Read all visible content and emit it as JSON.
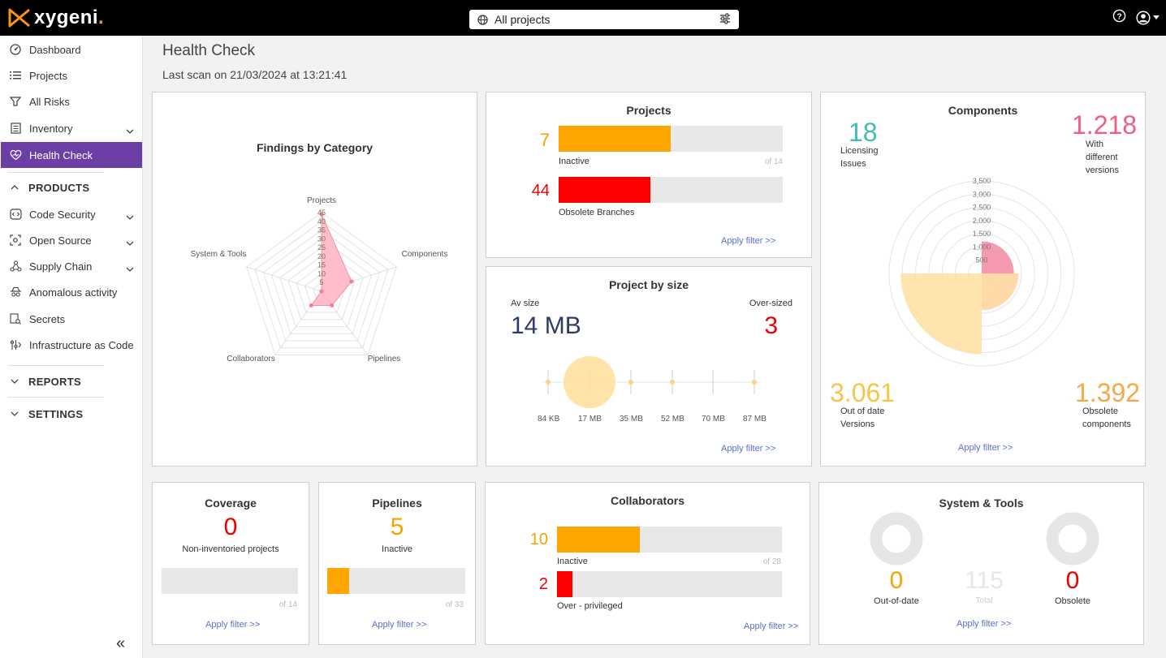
{
  "app": {
    "logo_text": "xygeni",
    "logo_dot": "."
  },
  "topbar": {
    "project_selector": "All projects"
  },
  "sidebar": {
    "items": [
      {
        "label": "Dashboard"
      },
      {
        "label": "Projects"
      },
      {
        "label": "All Risks"
      },
      {
        "label": "Inventory"
      },
      {
        "label": "Health Check"
      }
    ],
    "products_section": "PRODUCTS",
    "product_items": [
      {
        "label": "Code Security"
      },
      {
        "label": "Open Source"
      },
      {
        "label": "Supply Chain"
      },
      {
        "label": "Anomalous activity"
      },
      {
        "label": "Secrets"
      },
      {
        "label": "Infrastructure as Code"
      }
    ],
    "reports_section": "REPORTS",
    "settings_section": "SETTINGS",
    "collapse_glyph": "«"
  },
  "header": {
    "title": "Health Check",
    "subtitle": "Last scan on 21/03/2024 at 13:21:41"
  },
  "findings": {
    "title": "Findings by Category",
    "chart_data": {
      "type": "radar",
      "title": "Findings by Category",
      "axes": [
        "Projects",
        "Components",
        "Pipelines",
        "Collaborators",
        "System & Tools"
      ],
      "values": [
        44,
        18,
        10,
        10,
        0
      ],
      "ticks": [
        "5",
        "10",
        "15",
        "20",
        "25",
        "30",
        "35",
        "40",
        "45"
      ],
      "range": [
        0,
        45
      ]
    }
  },
  "projects_card": {
    "title": "Projects",
    "inactive_value": "7",
    "inactive_label": "Inactive",
    "inactive_fraction": 0.5,
    "of_total": "of 14",
    "obsolete_value": "44",
    "obsolete_label": "Obsolete Branches",
    "obsolete_fraction": 0.41,
    "apply": "Apply filter >>"
  },
  "size_card": {
    "title": "Project by size",
    "av_label": "Av size",
    "av_value": "14 MB",
    "over_label": "Over-sized",
    "over_value": "3",
    "ticks": [
      "84 KB",
      "17 MB",
      "35 MB",
      "52 MB",
      "70 MB",
      "87 MB"
    ],
    "apply": "Apply filter >>"
  },
  "components_card": {
    "title": "Components",
    "licensing_value": "18",
    "licensing_label_1": "Licensing",
    "licensing_label_2": "Issues",
    "versions_value": "1.218",
    "versions_label_1": "With",
    "versions_label_2": "different",
    "versions_label_3": "versions",
    "outdated_value": "3.061",
    "outdated_label_1": "Out of date",
    "outdated_label_2": "Versions",
    "obsolete_value": "1.392",
    "obsolete_label_1": "Obsolete",
    "obsolete_label_2": "components",
    "chart_data": {
      "type": "polar-area",
      "ticks": [
        "500",
        "1,000",
        "1,500",
        "2,000",
        "2,500",
        "3,000",
        "3,500"
      ],
      "range": [
        0,
        3500
      ],
      "segments": [
        {
          "label": "With different versions",
          "value": 1218,
          "color": "#f48fa8"
        },
        {
          "label": "Obsolete components",
          "value": 1392,
          "color": "#ffd59e"
        },
        {
          "label": "Out of date Versions",
          "value": 3061,
          "color": "#ffe1a6"
        },
        {
          "label": "Licensing Issues",
          "value": 18,
          "color": "#7fd3d0"
        }
      ]
    },
    "apply": "Apply filter >>"
  },
  "coverage_card": {
    "title": "Coverage",
    "value": "0",
    "label": "Non-inventoried projects",
    "of_total": "of 14",
    "fraction": 0,
    "apply": "Apply filter >>"
  },
  "pipelines_card": {
    "title": "Pipelines",
    "value": "5",
    "label": "Inactive",
    "of_total": "of 33",
    "fraction": 0.16,
    "apply": "Apply filter >>"
  },
  "collaborators_card": {
    "title": "Collaborators",
    "inactive_value": "10",
    "inactive_label": "Inactive",
    "inactive_fraction": 0.37,
    "of_total": "of 28",
    "priv_value": "2",
    "priv_label": "Over - privileged",
    "priv_fraction": 0.07,
    "apply": "Apply filter >>"
  },
  "system_card": {
    "title": "System & Tools",
    "outdated_value": "0",
    "outdated_label": "Out-of-date",
    "total_value": "115",
    "total_label": "Total",
    "obsolete_value": "0",
    "obsolete_label": "Obsolete",
    "apply": "Apply filter >>"
  }
}
